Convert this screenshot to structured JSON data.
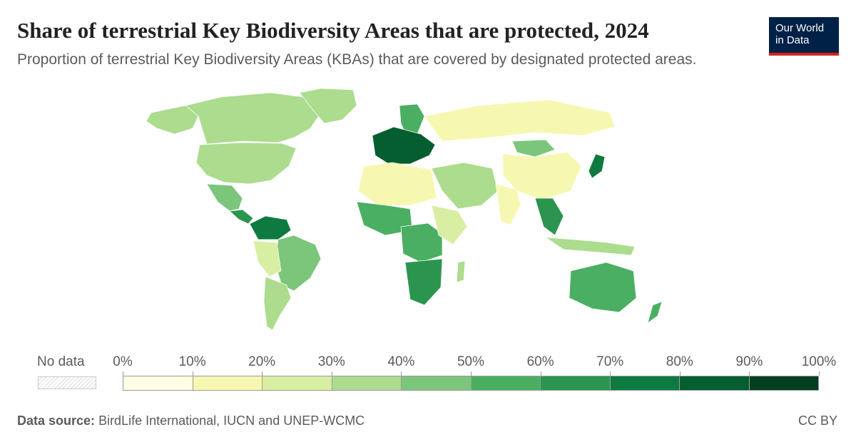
{
  "title": "Share of terrestrial Key Biodiversity Areas that are protected, 2024",
  "subtitle": "Proportion of terrestrial Key Biodiversity Areas (KBAs) that are covered by designated protected areas.",
  "logo": {
    "line1": "Our World",
    "line2": "in Data"
  },
  "legend": {
    "no_data_label": "No data",
    "ticks": [
      "0%",
      "10%",
      "20%",
      "30%",
      "40%",
      "50%",
      "60%",
      "70%",
      "80%",
      "90%",
      "100%"
    ],
    "colors": [
      "#fffee4",
      "#f6f8b1",
      "#d8eea2",
      "#acdc8e",
      "#7cc67b",
      "#4aaf63",
      "#2b9550",
      "#0e7a3f",
      "#055e30",
      "#033f21"
    ]
  },
  "footer": {
    "source_label": "Data source:",
    "source_text": "BirdLife International, IUCN and UNEP-WCMC",
    "license": "CC BY"
  },
  "map_regions": [
    {
      "name": "canada",
      "level": 3
    },
    {
      "name": "united-states",
      "level": 3
    },
    {
      "name": "alaska",
      "level": 3
    },
    {
      "name": "greenland",
      "level": 3
    },
    {
      "name": "mexico",
      "level": 4
    },
    {
      "name": "central-america",
      "level": 6
    },
    {
      "name": "colombia-venezuela",
      "level": 7
    },
    {
      "name": "brazil",
      "level": 4
    },
    {
      "name": "peru-bolivia",
      "level": 2
    },
    {
      "name": "argentina-chile",
      "level": 3
    },
    {
      "name": "western-europe",
      "level": 8
    },
    {
      "name": "scandinavia",
      "level": 5
    },
    {
      "name": "russia",
      "level": 1
    },
    {
      "name": "north-africa",
      "level": 1
    },
    {
      "name": "west-africa",
      "level": 5
    },
    {
      "name": "central-africa",
      "level": 5
    },
    {
      "name": "east-africa",
      "level": 2
    },
    {
      "name": "southern-africa",
      "level": 6
    },
    {
      "name": "middle-east",
      "level": 3
    },
    {
      "name": "india",
      "level": 1
    },
    {
      "name": "china",
      "level": 1
    },
    {
      "name": "mongolia",
      "level": 4
    },
    {
      "name": "southeast-asia",
      "level": 6
    },
    {
      "name": "japan",
      "level": 7
    },
    {
      "name": "indonesia",
      "level": 3
    },
    {
      "name": "australia",
      "level": 5
    },
    {
      "name": "new-zealand",
      "level": 5
    },
    {
      "name": "madagascar",
      "level": 3
    }
  ]
}
